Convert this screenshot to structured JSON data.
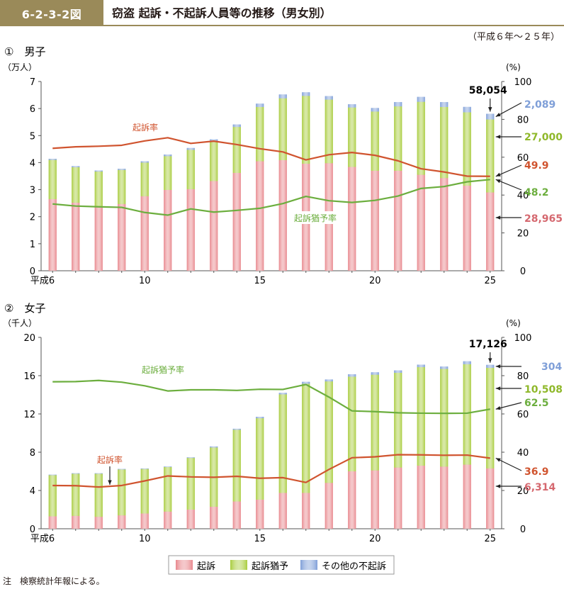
{
  "header": {
    "figure_no": "6-2-3-2図",
    "title": "窃盗 起訴・不起訴人員等の推移（男女別）",
    "period": "（平成６年～２５年）"
  },
  "legend": {
    "items": [
      {
        "label": "起訴",
        "color": "#e8868c"
      },
      {
        "label": "起訴猶予",
        "color": "#a8cc3c"
      },
      {
        "label": "その他の不起訴",
        "color": "#7f9fd8"
      }
    ]
  },
  "note": "注　検察統計年報による。",
  "chart_data": [
    {
      "type": "bar",
      "title": "①　男子",
      "ylabel": "（万人）",
      "ylabel_right": "(%)",
      "ylim": [
        0,
        7
      ],
      "yticks": [
        0,
        1,
        2,
        3,
        4,
        5,
        6,
        7
      ],
      "ylim_right": [
        0,
        100
      ],
      "yticks_right": [
        0,
        20,
        40,
        60,
        80,
        100
      ],
      "categories": [
        "平成6",
        "7",
        "8",
        "9",
        "10",
        "11",
        "12",
        "13",
        "14",
        "15",
        "16",
        "17",
        "18",
        "19",
        "20",
        "21",
        "22",
        "23",
        "24",
        "25"
      ],
      "xtick_labels": [
        {
          "index": 0,
          "label": "平成6"
        },
        {
          "index": 4,
          "label": "10"
        },
        {
          "index": 9,
          "label": "15"
        },
        {
          "index": 14,
          "label": "20"
        },
        {
          "index": 19,
          "label": "25"
        }
      ],
      "stacked": true,
      "series": [
        {
          "name": "起訴",
          "values": [
            2.65,
            2.52,
            2.37,
            2.47,
            2.76,
            2.99,
            3.02,
            3.32,
            3.62,
            4.05,
            4.09,
            3.96,
            3.98,
            3.84,
            3.7,
            3.7,
            3.55,
            3.43,
            3.15,
            2.8965
          ]
        },
        {
          "name": "起訴猶予",
          "values": [
            1.45,
            1.31,
            1.3,
            1.26,
            1.24,
            1.25,
            1.45,
            1.47,
            1.7,
            2.01,
            2.29,
            2.51,
            2.35,
            2.2,
            2.19,
            2.38,
            2.7,
            2.63,
            2.71,
            2.7
          ]
        },
        {
          "name": "その他の不起訴",
          "values": [
            0.04,
            0.04,
            0.04,
            0.04,
            0.05,
            0.06,
            0.07,
            0.07,
            0.09,
            0.12,
            0.14,
            0.13,
            0.13,
            0.12,
            0.13,
            0.16,
            0.18,
            0.18,
            0.2,
            0.2089
          ]
        }
      ],
      "lines": [
        {
          "name": "起訴率",
          "color": "#d0542f",
          "values": [
            64.7,
            65.5,
            65.8,
            66.3,
            68.6,
            70.3,
            67.3,
            68.5,
            66.7,
            64.5,
            62.8,
            58.6,
            61.3,
            62.5,
            61.0,
            58.1,
            53.9,
            52.2,
            50.0,
            49.9
          ]
        },
        {
          "name": "起訴猶予率",
          "color": "#6cae3e",
          "values": [
            35.3,
            34.2,
            33.8,
            33.5,
            30.8,
            29.4,
            32.7,
            31.0,
            31.9,
            33.0,
            35.5,
            39.3,
            37.0,
            36.1,
            37.2,
            39.5,
            43.5,
            44.5,
            47.0,
            48.2
          ]
        }
      ],
      "annotations": {
        "total": "58,054",
        "other": "2,089",
        "suspension": "27,000",
        "prosecution_rate": "49.9",
        "suspension_rate": "48.2",
        "prosecution": "28,965",
        "prosecution_rate_label": "起訴率",
        "suspension_rate_label": "起訴猶予率"
      }
    },
    {
      "type": "bar",
      "title": "②　女子",
      "ylabel": "（千人）",
      "ylabel_right": "(%)",
      "ylim": [
        0,
        20
      ],
      "yticks": [
        0,
        4,
        8,
        12,
        16,
        20
      ],
      "ylim_right": [
        0,
        100
      ],
      "yticks_right": [
        0,
        20,
        40,
        60,
        80,
        100
      ],
      "categories": [
        "平成6",
        "7",
        "8",
        "9",
        "10",
        "11",
        "12",
        "13",
        "14",
        "15",
        "16",
        "17",
        "18",
        "19",
        "20",
        "21",
        "22",
        "23",
        "24",
        "25"
      ],
      "xtick_labels": [
        {
          "index": 0,
          "label": "平成6"
        },
        {
          "index": 4,
          "label": "10"
        },
        {
          "index": 9,
          "label": "15"
        },
        {
          "index": 14,
          "label": "20"
        },
        {
          "index": 19,
          "label": "25"
        }
      ],
      "stacked": true,
      "series": [
        {
          "name": "起訴",
          "values": [
            1.3,
            1.35,
            1.25,
            1.4,
            1.6,
            1.8,
            2.0,
            2.3,
            2.85,
            3.05,
            3.75,
            3.75,
            4.8,
            6.0,
            6.1,
            6.4,
            6.6,
            6.5,
            6.7,
            6.314
          ]
        },
        {
          "name": "起訴猶予",
          "values": [
            4.3,
            4.4,
            4.5,
            4.8,
            4.65,
            4.65,
            5.4,
            6.2,
            7.5,
            8.5,
            10.3,
            11.4,
            10.6,
            9.9,
            10.0,
            9.9,
            10.3,
            10.2,
            10.5,
            10.508
          ]
        },
        {
          "name": "その他の不起訴",
          "values": [
            0.05,
            0.05,
            0.05,
            0.05,
            0.05,
            0.05,
            0.06,
            0.1,
            0.1,
            0.15,
            0.15,
            0.2,
            0.2,
            0.25,
            0.25,
            0.25,
            0.25,
            0.25,
            0.3,
            0.304
          ]
        }
      ],
      "lines": [
        {
          "name": "起訴率",
          "color": "#d0542f",
          "values": [
            22.6,
            22.5,
            21.8,
            22.6,
            25.0,
            27.6,
            27.1,
            26.9,
            27.4,
            26.4,
            26.7,
            24.2,
            31.0,
            37.1,
            37.6,
            38.7,
            38.6,
            38.4,
            38.5,
            36.9
          ]
        },
        {
          "name": "起訴猶予率",
          "color": "#6cae3e",
          "values": [
            76.8,
            76.9,
            77.5,
            76.6,
            74.7,
            72.0,
            72.6,
            72.6,
            72.3,
            72.9,
            72.8,
            75.4,
            68.8,
            61.6,
            61.2,
            60.6,
            60.4,
            60.3,
            60.4,
            62.5
          ]
        }
      ],
      "annotations": {
        "total": "17,126",
        "other": "304",
        "suspension": "10,508",
        "suspension_rate": "62.5",
        "prosecution_rate": "36.9",
        "prosecution": "6,314",
        "prosecution_rate_label": "起訴率",
        "suspension_rate_label": "起訴猶予率"
      }
    }
  ]
}
